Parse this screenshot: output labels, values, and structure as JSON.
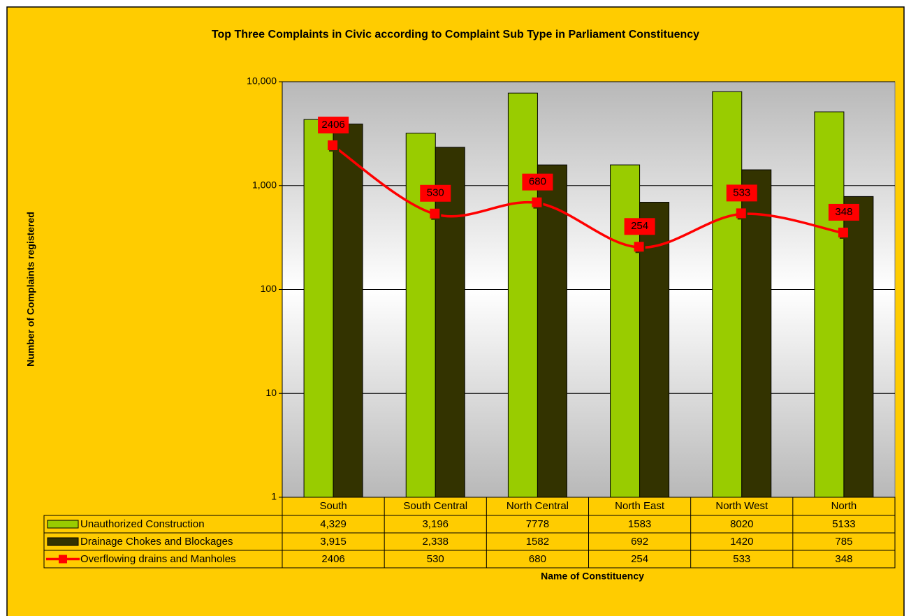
{
  "chart_data": {
    "type": "bar",
    "title": "Top Three Complaints in Civic according to Complaint Sub Type in Parliament Constituency",
    "x_label": "Name of Constituency",
    "y_label": "Number of Complaints registered",
    "categories": [
      "South",
      "South Central",
      "North Central",
      "North East",
      "North West",
      "North"
    ],
    "series": [
      {
        "name": "Unauthorized Construction",
        "type": "bar",
        "color": "#99cc00",
        "values": [
          4329,
          3196,
          7778,
          1583,
          8020,
          5133
        ],
        "value_labels": [
          "4,329",
          "3,196",
          "7778",
          "1583",
          "8020",
          "5133"
        ]
      },
      {
        "name": "Drainage Chokes and Blockages",
        "type": "bar",
        "color": "#333300",
        "values": [
          3915,
          2338,
          1582,
          692,
          1420,
          785
        ],
        "value_labels": [
          "3,915",
          "2,338",
          "1582",
          "692",
          "1420",
          "785"
        ]
      },
      {
        "name": "Overflowing drains and Manholes",
        "type": "line",
        "color": "#ff0000",
        "values": [
          2406,
          530,
          680,
          254,
          533,
          348
        ]
      }
    ],
    "log_scale": true,
    "ylim": [
      1,
      10000
    ],
    "yticks": [
      1,
      10,
      100,
      {
        "value": 1000,
        "label": "1,000"
      },
      {
        "value": 10000,
        "label": "10,000"
      }
    ],
    "grid": true
  }
}
